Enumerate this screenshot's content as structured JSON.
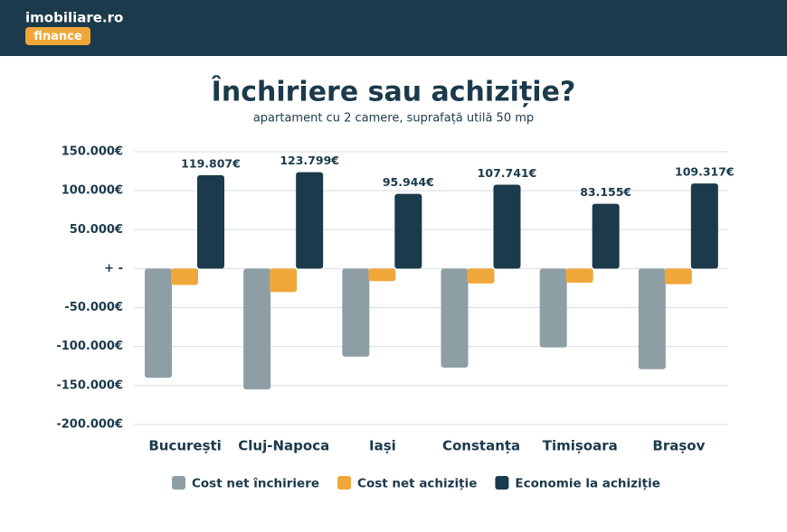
{
  "header": {
    "logo": "imobiliare.ro",
    "badge": "finance"
  },
  "chart_data": {
    "type": "bar",
    "title": "Închiriere sau achiziție?",
    "subtitle": "apartament cu 2 camere, suprafață utilă 50 mp",
    "categories": [
      "București",
      "Cluj-Napoca",
      "Iași",
      "Constanța",
      "Timișoara",
      "Brașov"
    ],
    "series": [
      {
        "name": "Cost net închiriere",
        "color": "#8e9ea5",
        "values": [
          -140000,
          -155000,
          -113000,
          -127000,
          -101000,
          -129000
        ]
      },
      {
        "name": "Cost net achiziție",
        "color": "#f0a73a",
        "values": [
          -21000,
          -30000,
          -16000,
          -19000,
          -18000,
          -20000
        ]
      },
      {
        "name": "Economie la achiziție",
        "color": "#1b3a4b",
        "values": [
          119807,
          123799,
          95944,
          107741,
          83155,
          109317
        ],
        "value_labels": [
          "119.807€",
          "123.799€",
          "95.944€",
          "107.741€",
          "83.155€",
          "109.317€"
        ]
      }
    ],
    "ylim": [
      -200000,
      150000
    ],
    "yticks": [
      {
        "value": -200000,
        "label": "-200.000€"
      },
      {
        "value": -150000,
        "label": "-150.000€"
      },
      {
        "value": -100000,
        "label": "-100.000€"
      },
      {
        "value": -50000,
        "label": "-50.000€"
      },
      {
        "value": 0,
        "label": "+ -"
      },
      {
        "value": 50000,
        "label": "50.000€"
      },
      {
        "value": 100000,
        "label": "100.000€"
      },
      {
        "value": 150000,
        "label": "150.000€"
      }
    ],
    "grid": true,
    "legend": "bottom"
  }
}
